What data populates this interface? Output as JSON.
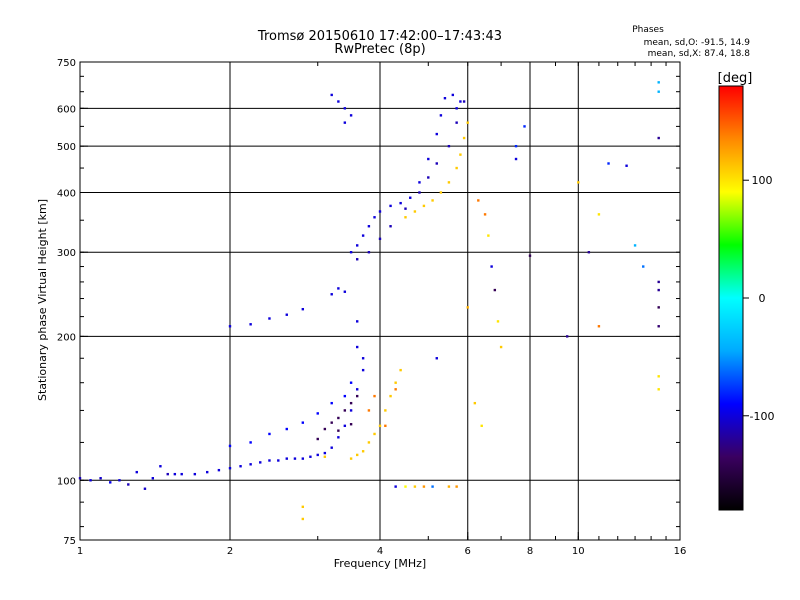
{
  "chart_data": {
    "type": "scatter",
    "title": "Tromsø 20150610 17:42:00–17:43:43",
    "subtitle": "RwPretec (8p)",
    "xlabel": "Frequency [MHz]",
    "ylabel": "Stationary phase Virtual Height [km]",
    "x_scale": "log",
    "y_scale": "log",
    "xlim": [
      1,
      16
    ],
    "ylim": [
      75,
      750
    ],
    "x_ticks": [
      1,
      2,
      4,
      6,
      8,
      10,
      16
    ],
    "x_tick_labels": [
      "1",
      "2",
      "4",
      "6",
      "8",
      "10",
      "16"
    ],
    "x_gridlines": [
      2,
      4,
      6,
      8,
      10
    ],
    "y_ticks": [
      75,
      100,
      200,
      300,
      400,
      500,
      600,
      750
    ],
    "y_tick_labels": [
      "75",
      "100",
      "200",
      "300",
      "400",
      "500",
      "600",
      "750"
    ],
    "y_gridlines": [
      100,
      200,
      300,
      400,
      500,
      600
    ],
    "grid": true,
    "phases_info": {
      "title": "Phases",
      "line1": "mean, sd,O: -91.5, 14.9",
      "line2": "mean, sd,X:  87.4, 18.8"
    },
    "colorbar": {
      "label": "[deg]",
      "ticks": [
        100,
        0,
        -100
      ],
      "tick_labels": [
        "100",
        "0",
        "-100"
      ],
      "range": [
        -180,
        180
      ],
      "colors_bottom_to_top": [
        "#000000",
        "#3a0060",
        "#0000ff",
        "#00aaff",
        "#00ffff",
        "#00ff00",
        "#ffff00",
        "#ff8800",
        "#ff0000"
      ]
    },
    "series": [
      {
        "points": [
          [
            1.0,
            101,
            -110
          ],
          [
            1.05,
            100,
            -100
          ],
          [
            1.1,
            101,
            -105
          ],
          [
            1.15,
            99,
            -95
          ],
          [
            1.2,
            100,
            -100
          ],
          [
            1.25,
            98,
            -110
          ],
          [
            1.3,
            104,
            -100
          ],
          [
            1.35,
            96,
            -105
          ],
          [
            1.4,
            101,
            -100
          ],
          [
            1.45,
            107,
            -100
          ],
          [
            1.5,
            103,
            -110
          ],
          [
            1.55,
            103,
            -100
          ],
          [
            1.6,
            103,
            -100
          ],
          [
            1.7,
            103,
            -100
          ],
          [
            1.8,
            104,
            -100
          ],
          [
            1.9,
            105,
            -100
          ],
          [
            2.0,
            106,
            -100
          ],
          [
            2.1,
            107,
            -100
          ],
          [
            2.2,
            108,
            -100
          ],
          [
            2.3,
            109,
            -100
          ],
          [
            2.4,
            110,
            -100
          ],
          [
            2.5,
            110,
            -100
          ],
          [
            2.6,
            111,
            -100
          ],
          [
            2.7,
            111,
            -100
          ],
          [
            2.8,
            111,
            -100
          ],
          [
            2.9,
            112,
            -100
          ],
          [
            3.0,
            113,
            -100
          ],
          [
            3.1,
            114,
            -100
          ],
          [
            3.2,
            117,
            -100
          ],
          [
            3.3,
            123,
            -100
          ],
          [
            3.4,
            130,
            -100
          ],
          [
            3.5,
            140,
            -100
          ],
          [
            3.6,
            155,
            -100
          ],
          [
            3.7,
            180,
            -100
          ]
        ]
      },
      {
        "points": [
          [
            2.0,
            118,
            -90
          ],
          [
            2.2,
            120,
            -90
          ],
          [
            2.4,
            125,
            -90
          ],
          [
            2.6,
            128,
            -90
          ],
          [
            2.8,
            132,
            -90
          ],
          [
            3.0,
            138,
            -90
          ],
          [
            3.2,
            145,
            -90
          ],
          [
            3.4,
            150,
            -90
          ],
          [
            3.5,
            160,
            -90
          ],
          [
            3.6,
            190,
            -100
          ],
          [
            3.6,
            215,
            -100
          ],
          [
            3.7,
            170,
            -100
          ]
        ]
      },
      {
        "points": [
          [
            3.0,
            122,
            -140
          ],
          [
            3.1,
            128,
            -140
          ],
          [
            3.2,
            132,
            -140
          ],
          [
            3.3,
            135,
            -140
          ],
          [
            3.4,
            140,
            -140
          ],
          [
            3.5,
            145,
            -140
          ],
          [
            3.6,
            150,
            -140
          ],
          [
            3.3,
            127,
            -140
          ],
          [
            3.5,
            131,
            -140
          ]
        ]
      },
      {
        "points": [
          [
            3.5,
            111,
            110
          ],
          [
            3.6,
            113,
            110
          ],
          [
            3.7,
            115,
            110
          ],
          [
            3.8,
            120,
            110
          ],
          [
            3.9,
            125,
            110
          ],
          [
            4.0,
            130,
            110
          ],
          [
            4.1,
            140,
            110
          ],
          [
            4.2,
            150,
            110
          ],
          [
            4.3,
            160,
            110
          ],
          [
            4.4,
            170,
            110
          ]
        ]
      },
      {
        "points": [
          [
            3.8,
            140,
            140
          ],
          [
            3.9,
            150,
            140
          ],
          [
            4.1,
            130,
            140
          ],
          [
            4.3,
            155,
            140
          ]
        ]
      },
      {
        "points": [
          [
            2.0,
            210,
            -100
          ],
          [
            2.2,
            212,
            -100
          ],
          [
            2.4,
            218,
            -100
          ],
          [
            2.6,
            222,
            -100
          ],
          [
            2.8,
            228,
            -100
          ],
          [
            3.2,
            245,
            -100
          ],
          [
            3.3,
            252,
            -100
          ],
          [
            3.4,
            248,
            -100
          ]
        ]
      },
      {
        "points": [
          [
            3.5,
            300,
            -100
          ],
          [
            3.6,
            310,
            -100
          ],
          [
            3.7,
            325,
            -100
          ],
          [
            3.8,
            340,
            -100
          ],
          [
            3.9,
            355,
            -100
          ],
          [
            4.0,
            365,
            -100
          ],
          [
            4.2,
            375,
            -100
          ],
          [
            4.4,
            380,
            -100
          ],
          [
            4.6,
            390,
            -100
          ],
          [
            4.8,
            420,
            -100
          ],
          [
            5.0,
            470,
            -100
          ],
          [
            5.2,
            530,
            -100
          ],
          [
            5.3,
            580,
            -100
          ],
          [
            5.4,
            630,
            -100
          ]
        ]
      },
      {
        "points": [
          [
            3.6,
            290,
            -110
          ],
          [
            3.8,
            300,
            -110
          ],
          [
            4.0,
            320,
            -110
          ],
          [
            4.2,
            340,
            -110
          ],
          [
            4.5,
            370,
            -110
          ],
          [
            4.8,
            400,
            -110
          ],
          [
            5.0,
            430,
            -110
          ],
          [
            5.2,
            460,
            -110
          ],
          [
            5.5,
            500,
            -110
          ],
          [
            5.7,
            560,
            -110
          ],
          [
            5.9,
            620,
            -110
          ]
        ]
      },
      {
        "points": [
          [
            4.5,
            355,
            110
          ],
          [
            4.7,
            365,
            110
          ],
          [
            4.9,
            375,
            110
          ],
          [
            5.1,
            385,
            110
          ],
          [
            5.3,
            400,
            110
          ],
          [
            5.5,
            420,
            110
          ],
          [
            5.7,
            450,
            110
          ],
          [
            5.8,
            480,
            110
          ],
          [
            5.9,
            520,
            110
          ],
          [
            6.0,
            560,
            110
          ]
        ]
      },
      {
        "points": [
          [
            3.2,
            640,
            -100
          ],
          [
            3.3,
            620,
            -100
          ],
          [
            3.4,
            600,
            -100
          ],
          [
            3.5,
            580,
            -100
          ],
          [
            3.4,
            560,
            -100
          ],
          [
            5.6,
            640,
            -100
          ],
          [
            5.8,
            620,
            -100
          ],
          [
            5.7,
            600,
            -100
          ]
        ]
      },
      {
        "points": [
          [
            4.3,
            97,
            -100
          ],
          [
            4.5,
            97,
            90
          ],
          [
            4.7,
            97,
            110
          ],
          [
            4.9,
            97,
            130
          ],
          [
            5.1,
            97,
            -60
          ],
          [
            5.5,
            97,
            120
          ],
          [
            5.7,
            97,
            130
          ],
          [
            2.8,
            88,
            110
          ],
          [
            2.8,
            83,
            110
          ],
          [
            3.1,
            112,
            110
          ]
        ]
      },
      {
        "points": [
          [
            6.3,
            385,
            140
          ],
          [
            6.5,
            360,
            140
          ],
          [
            6.6,
            325,
            100
          ],
          [
            6.7,
            280,
            -100
          ],
          [
            6.8,
            250,
            -140
          ],
          [
            6.9,
            215,
            100
          ],
          [
            7.0,
            190,
            110
          ],
          [
            7.5,
            470,
            -100
          ],
          [
            8.0,
            295,
            -140
          ],
          [
            9.5,
            200,
            -120
          ],
          [
            10.5,
            300,
            -120
          ],
          [
            11.5,
            460,
            -80
          ],
          [
            12.5,
            455,
            -100
          ],
          [
            13.0,
            310,
            -40
          ],
          [
            13.5,
            280,
            -60
          ],
          [
            14.5,
            260,
            -120
          ],
          [
            14.5,
            250,
            -120
          ],
          [
            14.5,
            230,
            -140
          ],
          [
            14.5,
            210,
            -130
          ],
          [
            14.5,
            165,
            100
          ],
          [
            14.5,
            155,
            100
          ],
          [
            14.5,
            520,
            -120
          ],
          [
            14.5,
            650,
            -40
          ],
          [
            14.5,
            680,
            -40
          ],
          [
            7.8,
            550,
            -80
          ],
          [
            7.5,
            500,
            -80
          ],
          [
            10.0,
            420,
            110
          ],
          [
            11.0,
            210,
            140
          ],
          [
            11.0,
            360,
            100
          ],
          [
            6.4,
            130,
            100
          ],
          [
            5.2,
            180,
            -100
          ],
          [
            6.0,
            230,
            120
          ],
          [
            6.2,
            145,
            110
          ]
        ]
      }
    ]
  }
}
